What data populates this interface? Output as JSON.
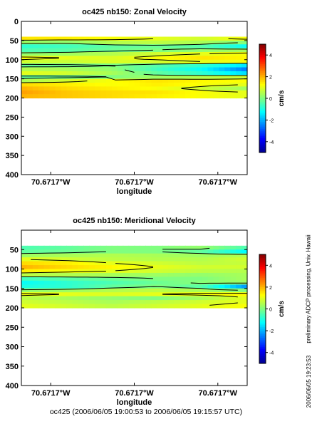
{
  "side_text": {
    "processing": "preliminary ADCP processing,   Univ. Hawaii",
    "timestamp": "2006/06/05 19:23:53"
  },
  "footer": "oc425 (2006/06/05 19:00:53 to 2006/06/05 19:15:57 UTC)",
  "colors": {
    "colormap": [
      "#00008f",
      "#0000ff",
      "#0080ff",
      "#00ffff",
      "#80ff80",
      "#ffff00",
      "#ff8000",
      "#ff0000",
      "#800000"
    ],
    "contour": "#000000",
    "axes": "#000000"
  },
  "chart_data": [
    {
      "type": "heatmap",
      "title": "oc425 nb150: Zonal Velocity",
      "xlabel": "longitude",
      "ylabel": "",
      "x_ticks": [
        "70.6717°W",
        "70.6717°W",
        "70.6717°W"
      ],
      "y_ticks": [
        0,
        50,
        100,
        150,
        200,
        250,
        300,
        350,
        400
      ],
      "ylim": [
        400,
        0
      ],
      "y_reversed": true,
      "data_depth_range": [
        40,
        195
      ],
      "colorbar": {
        "label": "cm/s",
        "ticks": [
          -4,
          -2,
          0,
          2,
          4
        ],
        "range": [
          -5,
          5
        ]
      },
      "depth_bins": [
        45,
        55,
        65,
        75,
        85,
        95,
        105,
        115,
        125,
        135,
        145,
        155,
        165,
        175,
        185,
        195
      ],
      "x_profiles": [
        0,
        0.2,
        0.4,
        0.6,
        0.8,
        1.0
      ],
      "values": [
        [
          1.5,
          1.4,
          1.2,
          1.0,
          0.8,
          1.2
        ],
        [
          0.3,
          0.2,
          0.5,
          0.6,
          0.4,
          0.0
        ],
        [
          -0.8,
          -0.6,
          -0.3,
          -0.2,
          -0.4,
          -1.2
        ],
        [
          -0.5,
          -0.4,
          -0.2,
          0.0,
          0.2,
          0.4
        ],
        [
          0.2,
          0.3,
          0.5,
          0.8,
          1.0,
          1.2
        ],
        [
          1.2,
          1.0,
          0.9,
          1.2,
          1.5,
          1.3
        ],
        [
          0.8,
          0.7,
          0.9,
          0.8,
          1.0,
          1.2
        ],
        [
          -0.3,
          -0.2,
          0.0,
          -0.4,
          -0.8,
          -1.5
        ],
        [
          0.5,
          0.4,
          0.2,
          -0.6,
          -1.2,
          -2.6
        ],
        [
          1.0,
          0.8,
          0.4,
          -0.3,
          -0.8,
          -1.6
        ],
        [
          -0.3,
          -0.2,
          0.0,
          0.3,
          0.5,
          0.8
        ],
        [
          0.4,
          0.8,
          1.2,
          1.5,
          1.3,
          1.2
        ],
        [
          1.6,
          1.4,
          1.2,
          1.4,
          1.2,
          1.0
        ],
        [
          2.0,
          1.6,
          1.4,
          1.2,
          0.8,
          0.3
        ],
        [
          2.2,
          1.8,
          1.6,
          1.5,
          1.2,
          1.0
        ],
        [
          2.0,
          1.8,
          1.6,
          1.4,
          1.2,
          1.0
        ]
      ]
    },
    {
      "type": "heatmap",
      "title": "oc425 nb150: Meridional Velocity",
      "xlabel": "longitude",
      "ylabel": "",
      "x_ticks": [
        "70.6717°W",
        "70.6717°W",
        "70.6717°W"
      ],
      "y_ticks": [
        50,
        100,
        150,
        200,
        250,
        300,
        350,
        400
      ],
      "ylim": [
        400,
        0
      ],
      "y_reversed": true,
      "data_depth_range": [
        40,
        195
      ],
      "colorbar": {
        "label": "cm/s",
        "ticks": [
          -4,
          -2,
          0,
          2,
          4
        ],
        "range": [
          -5,
          5
        ]
      },
      "depth_bins": [
        45,
        55,
        65,
        75,
        85,
        95,
        105,
        115,
        125,
        135,
        145,
        155,
        165,
        175,
        185,
        195
      ],
      "x_profiles": [
        0,
        0.2,
        0.4,
        0.6,
        0.8,
        1.0
      ],
      "values": [
        [
          -0.5,
          -0.3,
          0.0,
          0.0,
          0.2,
          -0.5
        ],
        [
          -0.3,
          -0.2,
          0.0,
          0.0,
          -0.3,
          -1.3
        ],
        [
          0.3,
          0.4,
          0.5,
          0.4,
          0.3,
          0.5
        ],
        [
          1.0,
          0.8,
          0.6,
          0.5,
          0.5,
          0.8
        ],
        [
          1.6,
          1.4,
          1.0,
          0.8,
          0.6,
          0.7
        ],
        [
          2.0,
          1.6,
          1.3,
          1.0,
          0.8,
          0.8
        ],
        [
          1.4,
          1.2,
          1.0,
          0.8,
          0.6,
          0.5
        ],
        [
          0.6,
          0.5,
          0.4,
          0.3,
          0.2,
          0.4
        ],
        [
          -0.6,
          -0.4,
          -0.2,
          0.0,
          0.0,
          0.4
        ],
        [
          -1.2,
          -0.8,
          -0.5,
          -0.2,
          0.1,
          0.3
        ],
        [
          -1.0,
          -0.8,
          -0.3,
          0.0,
          -0.4,
          -2.3
        ],
        [
          0.2,
          0.3,
          0.5,
          0.6,
          0.4,
          0.0
        ],
        [
          1.2,
          1.0,
          0.9,
          1.0,
          1.2,
          1.3
        ],
        [
          0.6,
          0.4,
          0.2,
          0.0,
          0.4,
          1.0
        ],
        [
          0.8,
          0.6,
          0.4,
          0.6,
          0.8,
          1.0
        ],
        [
          1.0,
          0.8,
          0.6,
          0.8,
          1.0,
          1.2
        ]
      ]
    }
  ]
}
